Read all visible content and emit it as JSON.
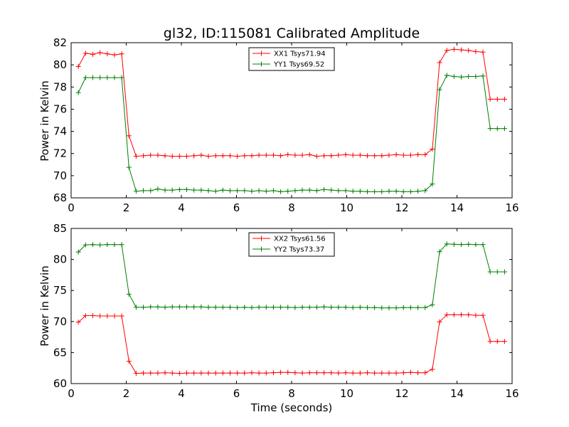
{
  "title": "gl32, ID:115081 Calibrated Amplitude",
  "chart_data": [
    {
      "type": "line",
      "xlabel": "",
      "ylabel": "Power in Kelvin",
      "xlim": [
        0,
        16
      ],
      "ylim": [
        68,
        82
      ],
      "xticks": [
        0,
        2,
        4,
        6,
        8,
        10,
        12,
        14,
        16
      ],
      "yticks": [
        68,
        70,
        72,
        74,
        76,
        78,
        80,
        82
      ],
      "grid": false,
      "legend_position": "top-center",
      "x": [
        0.262,
        0.524,
        0.786,
        1.049,
        1.311,
        1.573,
        1.835,
        2.097,
        2.359,
        2.621,
        2.884,
        3.146,
        3.408,
        3.67,
        3.932,
        4.194,
        4.456,
        4.719,
        4.981,
        5.243,
        5.505,
        5.767,
        6.029,
        6.291,
        6.554,
        6.816,
        7.078,
        7.34,
        7.602,
        7.864,
        8.126,
        8.389,
        8.651,
        8.913,
        9.175,
        9.437,
        9.699,
        9.961,
        10.224,
        10.486,
        10.748,
        11.01,
        11.272,
        11.534,
        11.796,
        12.058,
        12.321,
        12.583,
        12.845,
        13.107,
        13.369,
        13.631,
        13.893,
        14.156,
        14.418,
        14.68,
        14.942,
        15.204,
        15.466,
        15.728
      ],
      "series": [
        {
          "name": "XX1 Tsys71.94",
          "color": "#ff0000",
          "values": [
            79.85,
            81.05,
            80.95,
            81.1,
            81.0,
            80.9,
            81.0,
            73.6,
            71.75,
            71.8,
            71.85,
            71.85,
            71.8,
            71.75,
            71.75,
            71.75,
            71.8,
            71.85,
            71.75,
            71.8,
            71.8,
            71.8,
            71.75,
            71.8,
            71.8,
            71.85,
            71.85,
            71.85,
            71.8,
            71.9,
            71.85,
            71.85,
            71.9,
            71.75,
            71.8,
            71.8,
            71.85,
            71.9,
            71.85,
            71.85,
            71.8,
            71.8,
            71.8,
            71.85,
            71.9,
            71.85,
            71.85,
            71.9,
            71.9,
            72.4,
            80.2,
            81.3,
            81.4,
            81.35,
            81.3,
            81.2,
            81.15,
            76.9,
            76.9,
            76.9
          ]
        },
        {
          "name": "YY1 Tsys69.52",
          "color": "#008000",
          "values": [
            77.5,
            78.85,
            78.85,
            78.85,
            78.85,
            78.85,
            78.85,
            70.75,
            68.6,
            68.65,
            68.65,
            68.8,
            68.7,
            68.7,
            68.75,
            68.75,
            68.7,
            68.7,
            68.65,
            68.6,
            68.7,
            68.65,
            68.65,
            68.65,
            68.6,
            68.65,
            68.6,
            68.65,
            68.55,
            68.6,
            68.65,
            68.7,
            68.7,
            68.65,
            68.75,
            68.7,
            68.65,
            68.65,
            68.6,
            68.6,
            68.55,
            68.55,
            68.55,
            68.6,
            68.6,
            68.55,
            68.55,
            68.6,
            68.65,
            69.25,
            77.75,
            79.05,
            78.95,
            78.9,
            78.95,
            78.95,
            79.0,
            74.25,
            74.25,
            74.25
          ]
        }
      ]
    },
    {
      "type": "line",
      "xlabel": "Time (seconds)",
      "ylabel": "Power in Kelvin",
      "xlim": [
        0,
        16
      ],
      "ylim": [
        60,
        85
      ],
      "xticks": [
        0,
        2,
        4,
        6,
        8,
        10,
        12,
        14,
        16
      ],
      "yticks": [
        60,
        65,
        70,
        75,
        80,
        85
      ],
      "grid": false,
      "legend_position": "top-center",
      "x": [
        0.262,
        0.524,
        0.786,
        1.049,
        1.311,
        1.573,
        1.835,
        2.097,
        2.359,
        2.621,
        2.884,
        3.146,
        3.408,
        3.67,
        3.932,
        4.194,
        4.456,
        4.719,
        4.981,
        5.243,
        5.505,
        5.767,
        6.029,
        6.291,
        6.554,
        6.816,
        7.078,
        7.34,
        7.602,
        7.864,
        8.126,
        8.389,
        8.651,
        8.913,
        9.175,
        9.437,
        9.699,
        9.961,
        10.224,
        10.486,
        10.748,
        11.01,
        11.272,
        11.534,
        11.796,
        12.058,
        12.321,
        12.583,
        12.845,
        13.107,
        13.369,
        13.631,
        13.893,
        14.156,
        14.418,
        14.68,
        14.942,
        15.204,
        15.466,
        15.728
      ],
      "series": [
        {
          "name": "XX2 Tsys61.56",
          "color": "#ff0000",
          "values": [
            69.9,
            70.95,
            70.95,
            70.9,
            70.9,
            70.9,
            70.9,
            63.6,
            61.65,
            61.7,
            61.7,
            61.7,
            61.75,
            61.7,
            61.65,
            61.7,
            61.7,
            61.7,
            61.7,
            61.7,
            61.7,
            61.7,
            61.7,
            61.7,
            61.75,
            61.7,
            61.7,
            61.75,
            61.8,
            61.8,
            61.75,
            61.7,
            61.75,
            61.75,
            61.75,
            61.75,
            61.7,
            61.75,
            61.7,
            61.7,
            61.75,
            61.7,
            61.7,
            61.7,
            61.7,
            61.75,
            61.8,
            61.75,
            61.75,
            62.3,
            69.95,
            71.1,
            71.1,
            71.1,
            71.1,
            71.0,
            71.0,
            66.8,
            66.8,
            66.8
          ]
        },
        {
          "name": "YY2 Tsys73.37",
          "color": "#008000",
          "values": [
            81.2,
            82.35,
            82.4,
            82.35,
            82.4,
            82.4,
            82.4,
            74.4,
            72.3,
            72.3,
            72.35,
            72.35,
            72.3,
            72.35,
            72.35,
            72.35,
            72.35,
            72.35,
            72.3,
            72.3,
            72.3,
            72.3,
            72.25,
            72.3,
            72.25,
            72.3,
            72.3,
            72.3,
            72.3,
            72.3,
            72.25,
            72.3,
            72.3,
            72.3,
            72.35,
            72.3,
            72.3,
            72.3,
            72.25,
            72.3,
            72.25,
            72.25,
            72.2,
            72.2,
            72.2,
            72.25,
            72.25,
            72.25,
            72.25,
            72.7,
            81.25,
            82.5,
            82.45,
            82.4,
            82.45,
            82.4,
            82.4,
            78.0,
            78.0,
            78.0
          ]
        }
      ]
    }
  ]
}
